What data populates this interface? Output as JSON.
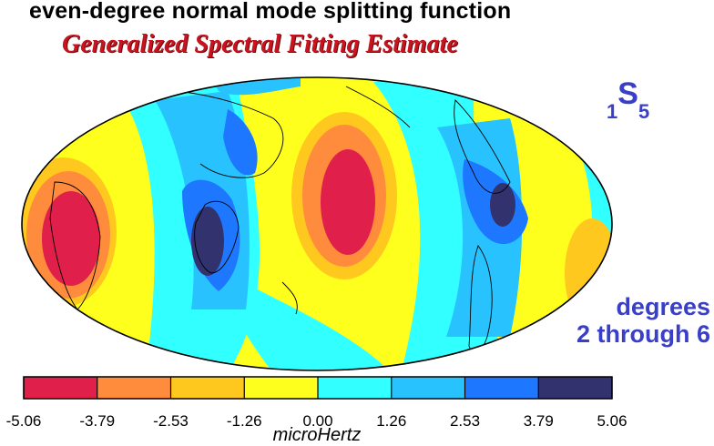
{
  "title": "even-degree normal mode splitting function",
  "subtitle": "Generalized Spectral Fitting Estimate",
  "mode": {
    "overtone": "1",
    "letter": "S",
    "degree": "5"
  },
  "degrees": {
    "line1": "degrees",
    "line2": "2 through 6"
  },
  "colorbar": {
    "unit": "microHertz",
    "ticks": [
      "-5.06",
      "-3.79",
      "-2.53",
      "-1.26",
      "0.00",
      "1.26",
      "2.53",
      "3.79",
      "5.06"
    ],
    "colors": [
      "#e0204a",
      "#ff8c3c",
      "#ffc81e",
      "#ffff1e",
      "#32ffff",
      "#28c3ff",
      "#1e78ff",
      "#32326e"
    ]
  },
  "map": {
    "projection": "Mollweide / Hammer equal-area global map",
    "coastlines": true
  }
}
